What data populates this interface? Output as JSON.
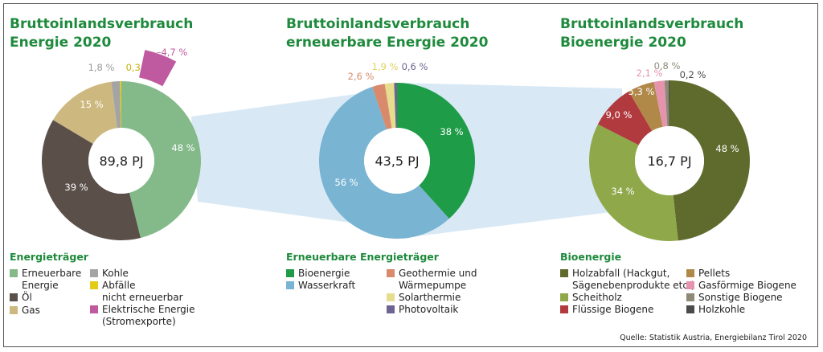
{
  "chart_data": [
    {
      "type": "pie",
      "title": "Bruttoinlandsverbrauch\nEnergie 2020",
      "center_label": "89,8 PJ",
      "legend_title": "Energieträger",
      "slices": [
        {
          "name": "Erneuerbare Energie",
          "value": 48,
          "label": "48 %",
          "color": "#84b98a"
        },
        {
          "name": "Öl",
          "value": 39,
          "label": "39 %",
          "color": "#5b4f4a"
        },
        {
          "name": "Gas",
          "value": 15,
          "label": "15 %",
          "color": "#cdb97f"
        },
        {
          "name": "Kohle",
          "value": 1.8,
          "label": "1,8 %",
          "color": "#a4a4a4"
        },
        {
          "name": "Abfälle nicht erneuerbar",
          "value": 0.3,
          "label": "0,3 %",
          "color": "#e2cc17"
        },
        {
          "name": "Elektrische Energie (Stromexporte)",
          "value": -4.7,
          "label": "–4,7 %",
          "color": "#c05aa0"
        }
      ]
    },
    {
      "type": "pie",
      "title": "Bruttoinlandsverbrauch\nerneuerbare Energie 2020",
      "center_label": "43,5 PJ",
      "legend_title": "Erneuerbare Energieträger",
      "slices": [
        {
          "name": "Bioenergie",
          "value": 38,
          "label": "38 %",
          "color": "#1f9c48"
        },
        {
          "name": "Wasserkraft",
          "value": 56,
          "label": "56 %",
          "color": "#79b4d3"
        },
        {
          "name": "Geothermie und Wärmepumpe",
          "value": 2.6,
          "label": "2,6 %",
          "color": "#d98a6c"
        },
        {
          "name": "Solarthermie",
          "value": 1.9,
          "label": "1,9 %",
          "color": "#e6dd8f"
        },
        {
          "name": "Photovoltaik",
          "value": 0.6,
          "label": "0,6 %",
          "color": "#6d6494"
        }
      ]
    },
    {
      "type": "pie",
      "title": "Bruttoinlandsverbrauch\nBioenergie 2020",
      "center_label": "16,7 PJ",
      "legend_title": "Bioenergie",
      "slices": [
        {
          "name": "Holzabfall (Hackgut, Sägenebenprodukte etc.)",
          "value": 48,
          "label": "48 %",
          "color": "#5f6b2d"
        },
        {
          "name": "Scheitholz",
          "value": 34,
          "label": "34 %",
          "color": "#8fa84a"
        },
        {
          "name": "Flüssige Biogene",
          "value": 9.0,
          "label": "9,0 %",
          "color": "#b13a3f"
        },
        {
          "name": "Pellets",
          "value": 5.3,
          "label": "5,3 %",
          "color": "#b08848"
        },
        {
          "name": "Gasförmige Biogene",
          "value": 2.1,
          "label": "2,1 %",
          "color": "#e694ad"
        },
        {
          "name": "Sonstige Biogene",
          "value": 0.8,
          "label": "0,8 %",
          "color": "#8f8a78"
        },
        {
          "name": "Holzkohle",
          "value": 0.2,
          "label": "0,2 %",
          "color": "#4a4a4a"
        }
      ]
    }
  ],
  "legend_labels": {
    "energie": [
      "Erneuerbare\nEnergie",
      "Öl",
      "Gas",
      "Kohle",
      "Abfälle\nnicht erneuerbar",
      "Elektrische Energie\n(Stromexporte)"
    ],
    "erneuerbar": [
      "Bioenergie",
      "Wasserkraft",
      "Geothermie und\nWärmepumpe",
      "Solarthermie",
      "Photovoltaik"
    ],
    "bio": [
      "Holzabfall (Hackgut,\nSägenebenprodukte etc.)",
      "Scheitholz",
      "Flüssige Biogene",
      "Pellets",
      "Gasförmige Biogene",
      "Sonstige Biogene",
      "Holzkohle"
    ]
  },
  "source": "Quelle: Statistik Austria, Energiebilanz Tirol 2020",
  "connector_color": "#d8e9f5"
}
